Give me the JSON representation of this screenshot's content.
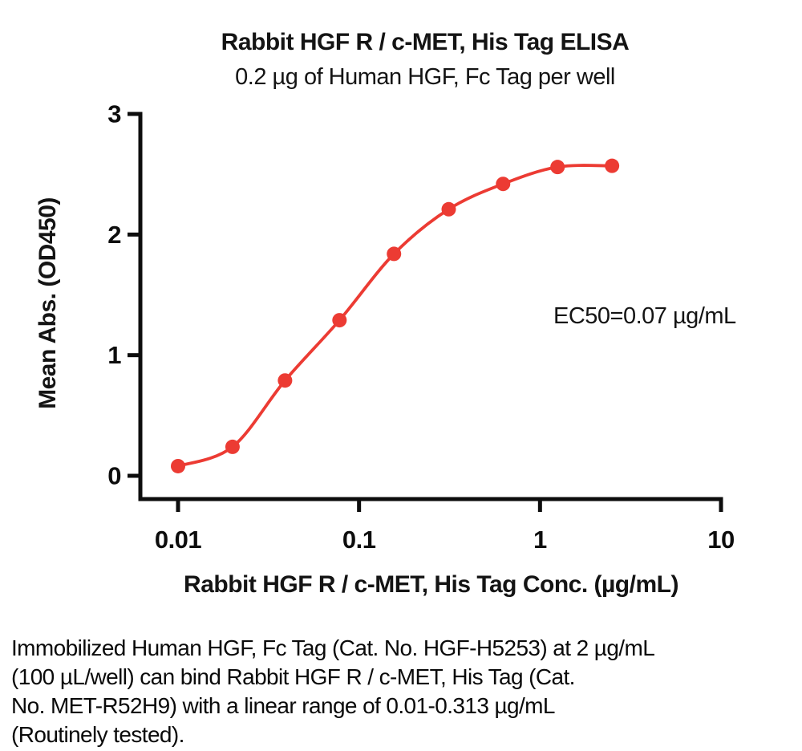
{
  "figure": {
    "title": "Rabbit HGF R / c-MET, His Tag ELISA",
    "subtitle": "0.2 µg of Human HGF, Fc Tag per well",
    "annotation": "EC50=0.07 µg/mL",
    "caption_lines": [
      "Immobilized Human HGF, Fc Tag (Cat. No. HGF-H5253) at 2 µg/mL",
      "(100 µL/well) can bind Rabbit HGF R / c-MET, His Tag (Cat.",
      "No. MET-R52H9) with a linear range of 0.01-0.313 µg/mL",
      "(Routinely tested)."
    ]
  },
  "chart_data": {
    "type": "scatter",
    "title": "Rabbit HGF R / c-MET, His Tag ELISA",
    "subtitle": "0.2 µg of Human HGF, Fc Tag per well",
    "xlabel": "Rabbit HGF R / c-MET, His Tag Conc. (µg/mL)",
    "ylabel": "Mean Abs. (OD450)",
    "x_scale": "log10",
    "xlim": [
      0.01,
      10
    ],
    "ylim": [
      0,
      3
    ],
    "x_ticks": [
      0.01,
      0.1,
      1,
      10
    ],
    "x_tick_labels": [
      "0.01",
      "0.1",
      "1",
      "10"
    ],
    "y_ticks": [
      0,
      1,
      2,
      3
    ],
    "y_tick_labels": [
      "0",
      "1",
      "2",
      "3"
    ],
    "grid": false,
    "legend": "none",
    "curve": "sigmoidal 4PL fit line through points",
    "annotation": "EC50=0.07 µg/mL",
    "series": [
      {
        "name": "Rabbit HGF R / c-MET, His Tag",
        "color": "#EC3B33",
        "x": [
          0.01,
          0.02,
          0.039,
          0.078,
          0.156,
          0.313,
          0.625,
          1.25,
          2.5
        ],
        "y": [
          0.08,
          0.24,
          0.79,
          1.29,
          1.84,
          2.21,
          2.42,
          2.56,
          2.57
        ]
      }
    ]
  }
}
